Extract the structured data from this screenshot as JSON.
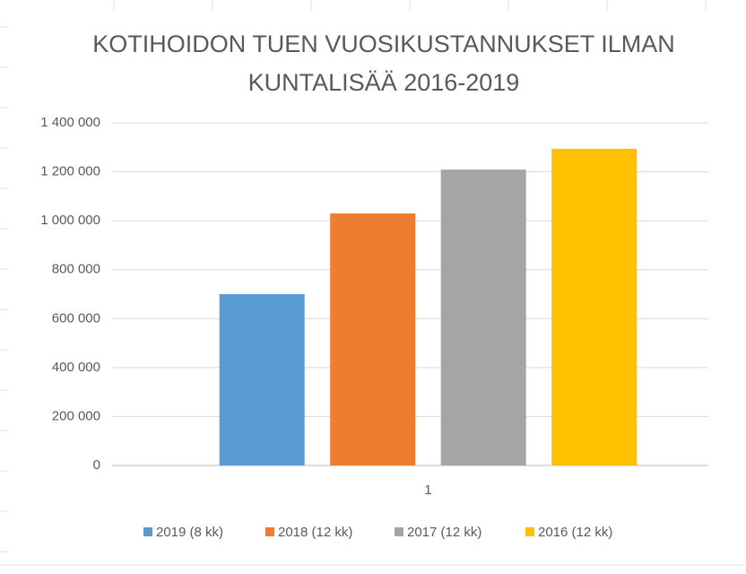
{
  "chart_data": {
    "type": "bar",
    "title": "KOTIHOIDON TUEN VUOSIKUSTANNUKSET ILMAN KUNTALISÄÄ 2016-2019",
    "categories": [
      "1"
    ],
    "series": [
      {
        "name": "2019 (8 kk)",
        "color": "#5b9bd5",
        "values": [
          700000
        ]
      },
      {
        "name": "2018 (12 kk)",
        "color": "#ed7d31",
        "values": [
          1030000
        ]
      },
      {
        "name": "2017 (12 kk)",
        "color": "#a5a5a5",
        "values": [
          1209000
        ]
      },
      {
        "name": "2016 (12 kk)",
        "color": "#ffc000",
        "values": [
          1294000
        ]
      }
    ],
    "ylim": [
      0,
      1400000
    ],
    "yticks": [
      0,
      {
        "value": 200000,
        "label": "200 000"
      },
      {
        "value": 400000,
        "label": "400 000"
      },
      {
        "value": 600000,
        "label": "600 000"
      },
      {
        "value": 800000,
        "label": "800 000"
      },
      {
        "value": 1000000,
        "label": "1 000 000"
      },
      {
        "value": 1200000,
        "label": "1 200 000"
      },
      {
        "value": 1400000,
        "label": "1 400 000"
      }
    ],
    "grid": true,
    "legend": "bottom"
  }
}
